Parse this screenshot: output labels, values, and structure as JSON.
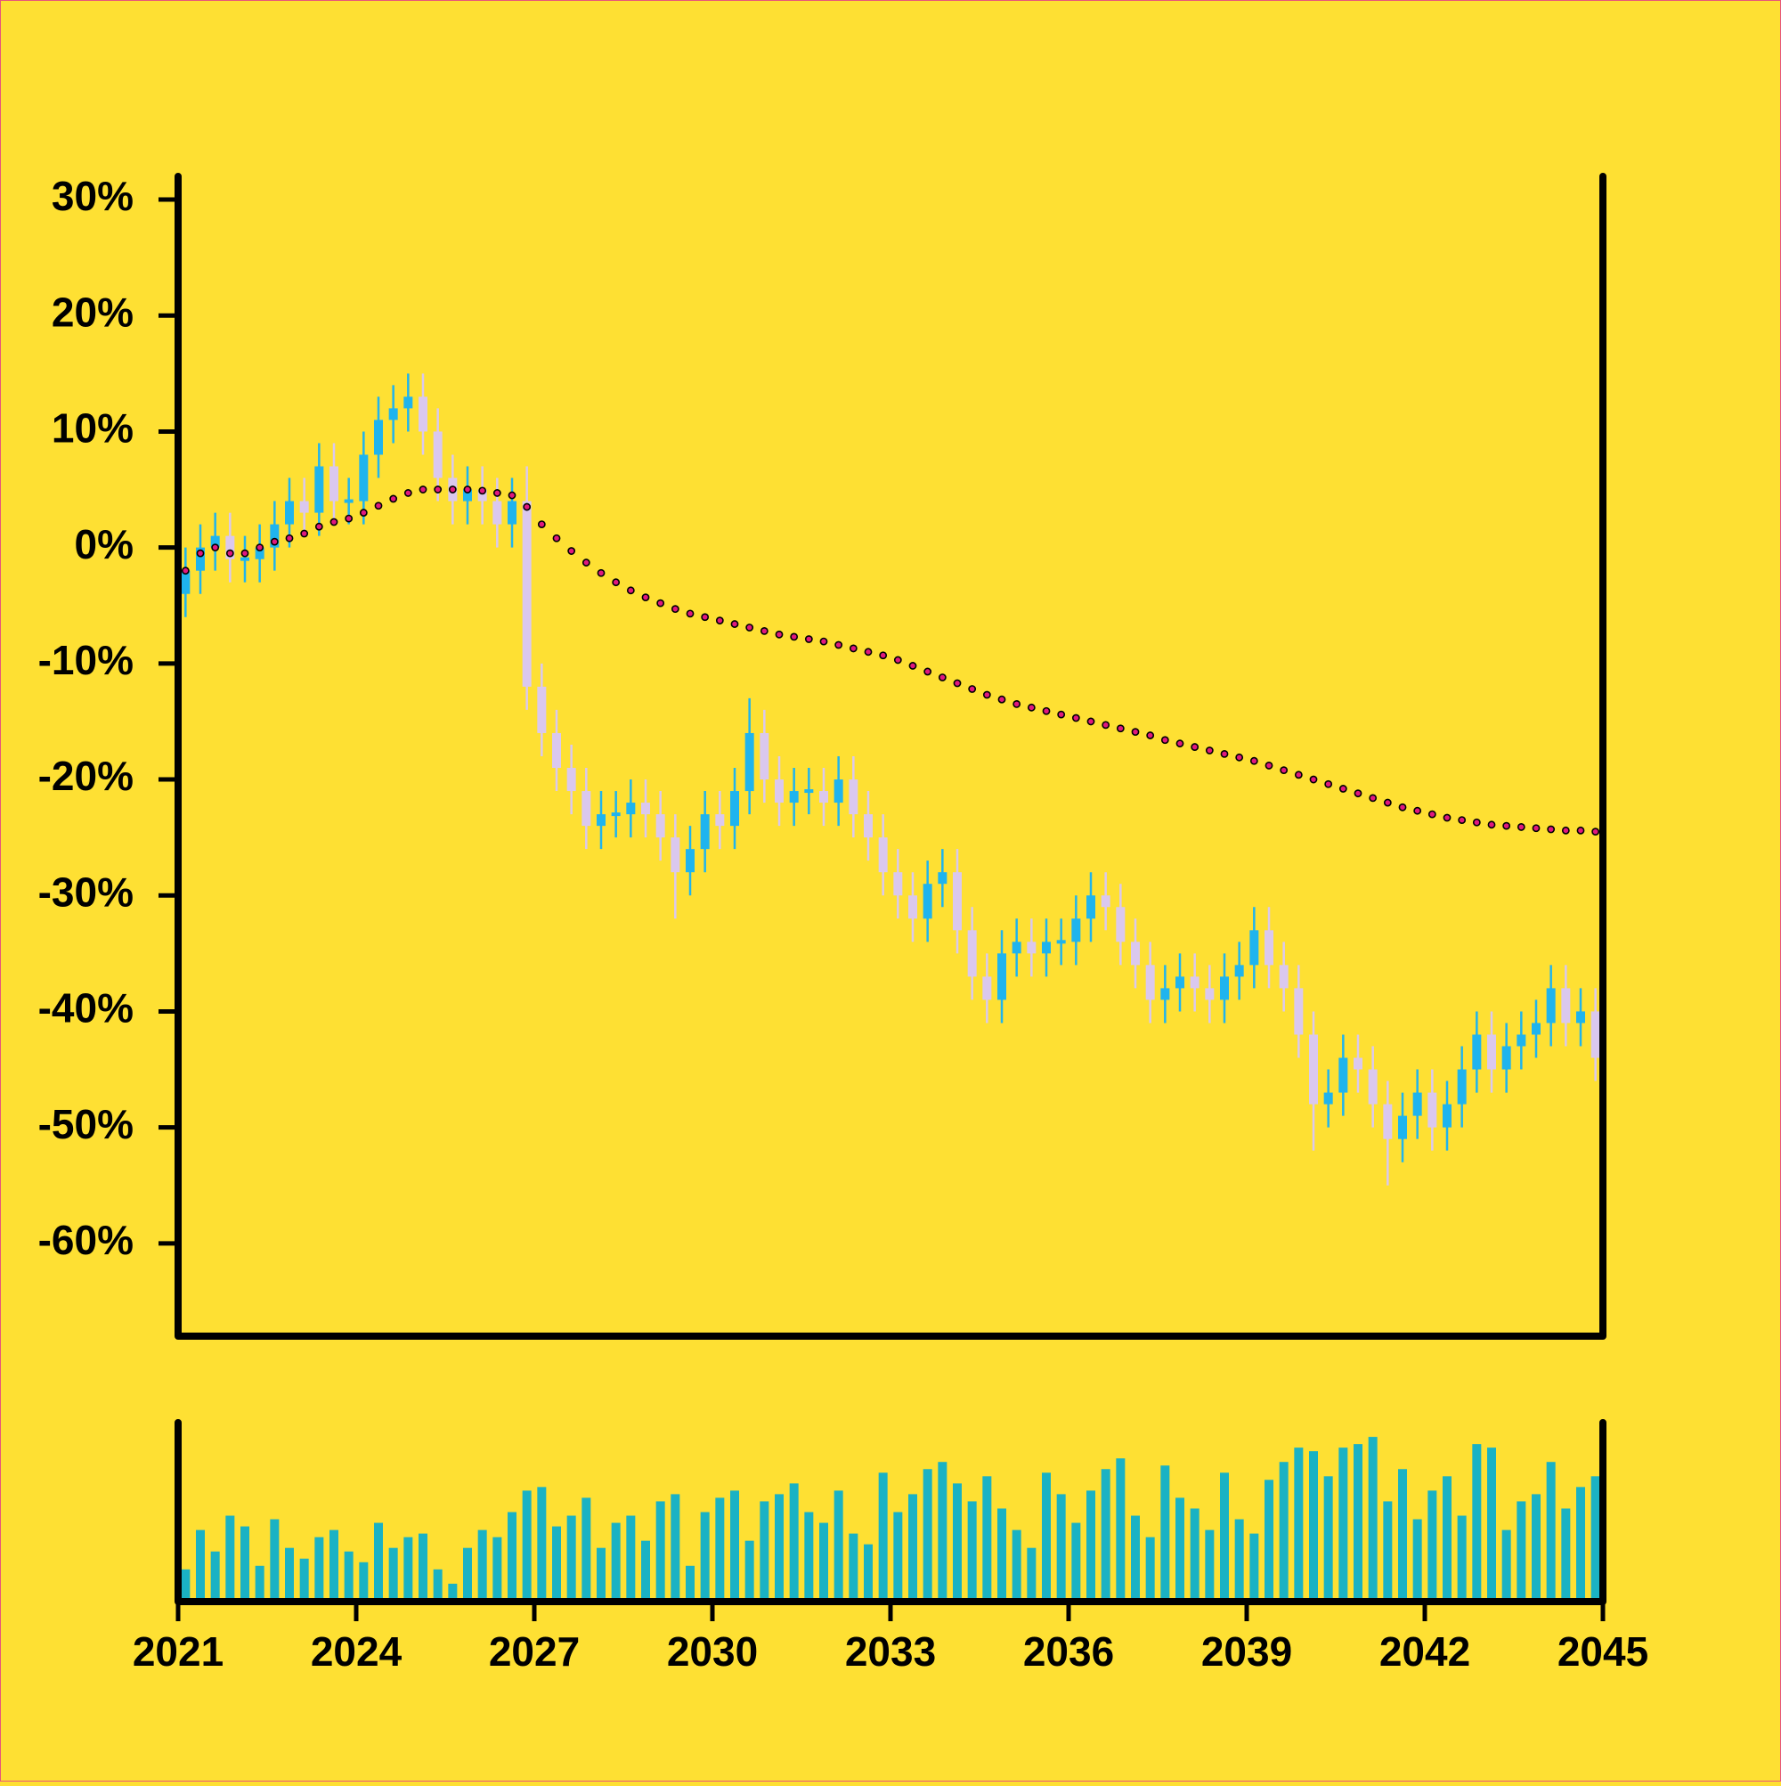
{
  "chart_data": [
    {
      "type": "candlestick",
      "x": [
        2021.125,
        2021.375,
        2021.625,
        2021.875,
        2022.125,
        2022.375,
        2022.625,
        2022.875,
        2023.125,
        2023.375,
        2023.625,
        2023.875,
        2024.125,
        2024.375,
        2024.625,
        2024.875,
        2025.125,
        2025.375,
        2025.625,
        2025.875,
        2026.125,
        2026.375,
        2026.625,
        2026.875,
        2027.125,
        2027.375,
        2027.625,
        2027.875,
        2028.125,
        2028.375,
        2028.625,
        2028.875,
        2029.125,
        2029.375,
        2029.625,
        2029.875,
        2030.125,
        2030.375,
        2030.625,
        2030.875,
        2031.125,
        2031.375,
        2031.625,
        2031.875,
        2032.125,
        2032.375,
        2032.625,
        2032.875,
        2033.125,
        2033.375,
        2033.625,
        2033.875,
        2034.125,
        2034.375,
        2034.625,
        2034.875,
        2035.125,
        2035.375,
        2035.625,
        2035.875,
        2036.125,
        2036.375,
        2036.625,
        2036.875,
        2037.125,
        2037.375,
        2037.625,
        2037.875,
        2038.125,
        2038.375,
        2038.625,
        2038.875,
        2039.125,
        2039.375,
        2039.625,
        2039.875,
        2040.125,
        2040.375,
        2040.625,
        2040.875,
        2041.125,
        2041.375,
        2041.625,
        2041.875,
        2042.125,
        2042.375,
        2042.625,
        2042.875,
        2043.125,
        2043.375,
        2043.625,
        2043.875,
        2044.125,
        2044.375,
        2044.625,
        2044.875
      ],
      "open": [
        -4,
        -2,
        0,
        1,
        -1,
        -1,
        0,
        2,
        4,
        3,
        7,
        4,
        4,
        8,
        11,
        12,
        13,
        10,
        6,
        4,
        5,
        4,
        2,
        4,
        -12,
        -16,
        -19,
        -21,
        -24,
        -23,
        -23,
        -22,
        -23,
        -25,
        -28,
        -26,
        -23,
        -24,
        -21,
        -16,
        -20,
        -22,
        -21,
        -21,
        -22,
        -20,
        -23,
        -25,
        -28,
        -30,
        -32,
        -29,
        -28,
        -33,
        -37,
        -39,
        -35,
        -34,
        -35,
        -34,
        -34,
        -32,
        -30,
        -31,
        -34,
        -36,
        -39,
        -38,
        -37,
        -38,
        -39,
        -37,
        -36,
        -33,
        -36,
        -38,
        -42,
        -48,
        -47,
        -44,
        -45,
        -48,
        -51,
        -49,
        -47,
        -50,
        -48,
        -45,
        -42,
        -45,
        -43,
        -42,
        -41,
        -38,
        -41,
        -40
      ],
      "high": [
        0,
        2,
        3,
        3,
        1,
        2,
        4,
        6,
        6,
        9,
        9,
        6,
        10,
        13,
        14,
        15,
        15,
        12,
        8,
        7,
        7,
        6,
        6,
        7,
        -10,
        -14,
        -17,
        -19,
        -21,
        -21,
        -20,
        -20,
        -21,
        -23,
        -24,
        -21,
        -21,
        -19,
        -13,
        -14,
        -18,
        -19,
        -19,
        -19,
        -18,
        -18,
        -21,
        -23,
        -26,
        -28,
        -27,
        -26,
        -26,
        -31,
        -35,
        -33,
        -32,
        -32,
        -32,
        -32,
        -30,
        -28,
        -28,
        -29,
        -32,
        -34,
        -36,
        -35,
        -35,
        -36,
        -35,
        -34,
        -31,
        -31,
        -34,
        -36,
        -40,
        -45,
        -42,
        -42,
        -43,
        -46,
        -47,
        -45,
        -45,
        -46,
        -43,
        -40,
        -40,
        -41,
        -40,
        -39,
        -36,
        -36,
        -38,
        -38
      ],
      "low": [
        -6,
        -4,
        -2,
        -3,
        -3,
        -3,
        -2,
        0,
        1,
        1,
        2,
        2,
        2,
        6,
        9,
        10,
        8,
        4,
        2,
        2,
        2,
        0,
        0,
        -14,
        -18,
        -21,
        -23,
        -26,
        -26,
        -25,
        -25,
        -25,
        -27,
        -32,
        -30,
        -28,
        -26,
        -26,
        -23,
        -22,
        -24,
        -24,
        -23,
        -24,
        -24,
        -25,
        -27,
        -30,
        -32,
        -34,
        -34,
        -31,
        -35,
        -39,
        -41,
        -41,
        -37,
        -37,
        -37,
        -36,
        -36,
        -34,
        -33,
        -36,
        -38,
        -41,
        -41,
        -40,
        -40,
        -41,
        -41,
        -39,
        -38,
        -38,
        -40,
        -44,
        -52,
        -50,
        -49,
        -47,
        -50,
        -55,
        -53,
        -51,
        -52,
        -52,
        -50,
        -47,
        -47,
        -47,
        -45,
        -44,
        -43,
        -43,
        -43,
        -46
      ],
      "close": [
        -2,
        0,
        1,
        -1,
        -1,
        0,
        2,
        4,
        3,
        7,
        4,
        4,
        8,
        11,
        12,
        13,
        10,
        6,
        4,
        5,
        4,
        2,
        4,
        -12,
        -16,
        -19,
        -21,
        -24,
        -23,
        -23,
        -22,
        -23,
        -25,
        -28,
        -26,
        -23,
        -24,
        -21,
        -16,
        -20,
        -22,
        -21,
        -21,
        -22,
        -20,
        -23,
        -25,
        -28,
        -30,
        -32,
        -29,
        -28,
        -33,
        -37,
        -39,
        -35,
        -34,
        -35,
        -34,
        -34,
        -32,
        -30,
        -31,
        -34,
        -36,
        -39,
        -38,
        -37,
        -38,
        -39,
        -37,
        -36,
        -33,
        -36,
        -38,
        -42,
        -48,
        -47,
        -44,
        -45,
        -48,
        -51,
        -49,
        -47,
        -50,
        -48,
        -45,
        -42,
        -45,
        -43,
        -42,
        -41,
        -38,
        -41,
        -40,
        -44
      ],
      "moving_average": [
        -2,
        -0.5,
        0,
        -0.5,
        -0.5,
        0,
        0.5,
        0.8,
        1.2,
        1.8,
        2.2,
        2.5,
        3,
        3.6,
        4.2,
        4.7,
        5,
        5,
        5,
        5,
        4.9,
        4.7,
        4.5,
        3.5,
        2,
        0.8,
        -0.3,
        -1.3,
        -2.2,
        -3,
        -3.7,
        -4.3,
        -4.8,
        -5.3,
        -5.7,
        -6,
        -6.3,
        -6.6,
        -6.9,
        -7.2,
        -7.5,
        -7.7,
        -7.9,
        -8.1,
        -8.4,
        -8.7,
        -9,
        -9.3,
        -9.7,
        -10.2,
        -10.7,
        -11.2,
        -11.7,
        -12.2,
        -12.7,
        -13.1,
        -13.5,
        -13.8,
        -14.1,
        -14.4,
        -14.7,
        -15,
        -15.3,
        -15.6,
        -15.9,
        -16.2,
        -16.6,
        -16.9,
        -17.2,
        -17.5,
        -17.8,
        -18.1,
        -18.4,
        -18.8,
        -19.2,
        -19.6,
        -20,
        -20.4,
        -20.8,
        -21.2,
        -21.6,
        -22,
        -22.4,
        -22.7,
        -23,
        -23.3,
        -23.5,
        -23.7,
        -23.9,
        -24,
        -24.1,
        -24.2,
        -24.3,
        -24.4,
        -24.4,
        -24.5
      ],
      "up_color": "#1fb4ee",
      "down_color": "#dac8ee",
      "ma_color": "#e0187f",
      "xlim": [
        2021,
        2045
      ],
      "ylim": [
        -68,
        32
      ],
      "yticks": [
        {
          "value": 30,
          "label": "30%"
        },
        {
          "value": 20,
          "label": "20%"
        },
        {
          "value": 10,
          "label": "10%"
        },
        {
          "value": 0,
          "label": "0%"
        },
        {
          "value": -10,
          "label": "-10%"
        },
        {
          "value": -20,
          "label": "-20%"
        },
        {
          "value": -30,
          "label": "-30%"
        },
        {
          "value": -40,
          "label": "-40%"
        },
        {
          "value": -50,
          "label": "-50%"
        },
        {
          "value": -60,
          "label": "-60%"
        }
      ]
    },
    {
      "type": "bar",
      "x": [
        2021.125,
        2021.375,
        2021.625,
        2021.875,
        2022.125,
        2022.375,
        2022.625,
        2022.875,
        2023.125,
        2023.375,
        2023.625,
        2023.875,
        2024.125,
        2024.375,
        2024.625,
        2024.875,
        2025.125,
        2025.375,
        2025.625,
        2025.875,
        2026.125,
        2026.375,
        2026.625,
        2026.875,
        2027.125,
        2027.375,
        2027.625,
        2027.875,
        2028.125,
        2028.375,
        2028.625,
        2028.875,
        2029.125,
        2029.375,
        2029.625,
        2029.875,
        2030.125,
        2030.375,
        2030.625,
        2030.875,
        2031.125,
        2031.375,
        2031.625,
        2031.875,
        2032.125,
        2032.375,
        2032.625,
        2032.875,
        2033.125,
        2033.375,
        2033.625,
        2033.875,
        2034.125,
        2034.375,
        2034.625,
        2034.875,
        2035.125,
        2035.375,
        2035.625,
        2035.875,
        2036.125,
        2036.375,
        2036.625,
        2036.875,
        2037.125,
        2037.375,
        2037.625,
        2037.875,
        2038.125,
        2038.375,
        2038.625,
        2038.875,
        2039.125,
        2039.375,
        2039.625,
        2039.875,
        2040.125,
        2040.375,
        2040.625,
        2040.875,
        2041.125,
        2041.375,
        2041.625,
        2041.875,
        2042.125,
        2042.375,
        2042.625,
        2042.875,
        2043.125,
        2043.375,
        2043.625,
        2043.875,
        2044.125,
        2044.375,
        2044.625,
        2044.875
      ],
      "values": [
        18,
        40,
        28,
        48,
        42,
        20,
        46,
        30,
        24,
        36,
        40,
        28,
        22,
        44,
        30,
        36,
        38,
        18,
        10,
        30,
        40,
        36,
        50,
        62,
        64,
        42,
        48,
        58,
        30,
        44,
        48,
        34,
        56,
        60,
        20,
        50,
        58,
        62,
        34,
        56,
        60,
        66,
        50,
        44,
        62,
        38,
        32,
        72,
        50,
        60,
        74,
        78,
        66,
        56,
        70,
        52,
        40,
        30,
        72,
        60,
        44,
        62,
        74,
        80,
        48,
        36,
        76,
        58,
        52,
        40,
        72,
        46,
        38,
        68,
        78,
        86,
        84,
        70,
        86,
        88,
        92,
        56,
        74,
        46,
        62,
        70,
        48,
        88,
        86,
        40,
        56,
        60,
        78,
        52,
        64,
        70
      ],
      "color": "#1ab2c4",
      "xlim": [
        2021,
        2045
      ],
      "ylim": [
        0,
        100
      ],
      "xticks": [
        2021,
        2024,
        2027,
        2030,
        2033,
        2036,
        2039,
        2042,
        2045
      ]
    }
  ]
}
